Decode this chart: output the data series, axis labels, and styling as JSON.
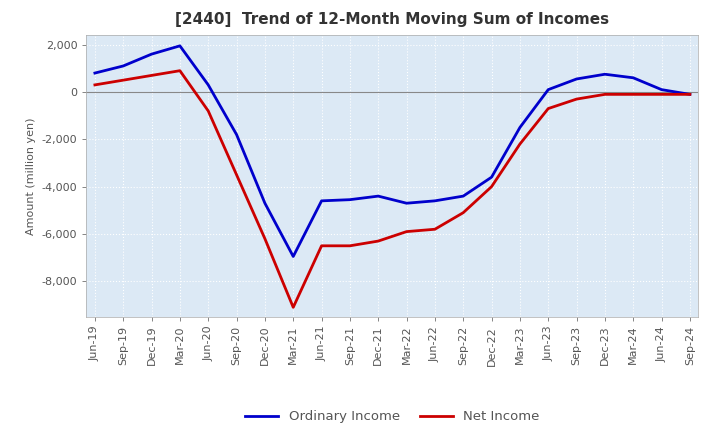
{
  "title": "[2440]  Trend of 12-Month Moving Sum of Incomes",
  "ylabel": "Amount (million yen)",
  "background_color": "#ffffff",
  "plot_bg_color": "#dce9f5",
  "grid_color": "#ffffff",
  "x_labels": [
    "Jun-19",
    "Sep-19",
    "Dec-19",
    "Mar-20",
    "Jun-20",
    "Sep-20",
    "Dec-20",
    "Mar-21",
    "Jun-21",
    "Sep-21",
    "Dec-21",
    "Mar-22",
    "Jun-22",
    "Sep-22",
    "Dec-22",
    "Mar-23",
    "Jun-23",
    "Sep-23",
    "Dec-23",
    "Mar-24",
    "Jun-24",
    "Sep-24"
  ],
  "ordinary_income": [
    800,
    1100,
    1600,
    1950,
    300,
    -1800,
    -4700,
    -6950,
    -4600,
    -4550,
    -4400,
    -4700,
    -4600,
    -4400,
    -3600,
    -1500,
    100,
    550,
    750,
    600,
    100,
    -100
  ],
  "net_income": [
    300,
    500,
    700,
    900,
    -800,
    -3500,
    -6200,
    -9100,
    -6500,
    -6500,
    -6300,
    -5900,
    -5800,
    -5100,
    -4000,
    -2200,
    -700,
    -300,
    -100,
    -100,
    -100,
    -100
  ],
  "ordinary_color": "#0000cc",
  "net_color": "#cc0000",
  "ylim": [
    -9500,
    2400
  ],
  "yticks": [
    2000,
    0,
    -2000,
    -4000,
    -6000,
    -8000
  ],
  "line_width": 2.0,
  "title_fontsize": 11,
  "axis_fontsize": 8,
  "ylabel_fontsize": 8
}
